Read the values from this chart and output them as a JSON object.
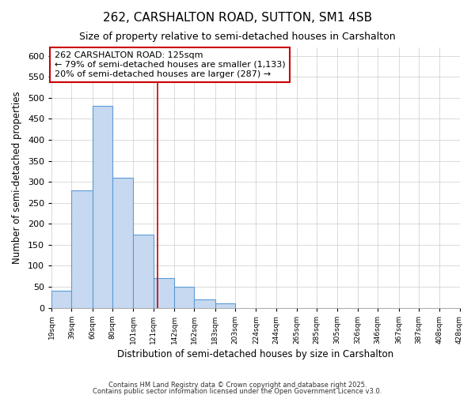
{
  "title": "262, CARSHALTON ROAD, SUTTON, SM1 4SB",
  "subtitle": "Size of property relative to semi-detached houses in Carshalton",
  "xlabel": "Distribution of semi-detached houses by size in Carshalton",
  "ylabel": "Number of semi-detached properties",
  "footer1": "Contains HM Land Registry data © Crown copyright and database right 2025.",
  "footer2": "Contains public sector information licensed under the Open Government Licence v3.0.",
  "bar_edges": [
    19,
    39,
    60,
    80,
    101,
    121,
    142,
    162,
    183,
    203,
    224,
    244,
    265,
    285,
    305,
    326,
    346,
    367,
    387,
    408,
    428
  ],
  "bar_heights": [
    40,
    280,
    480,
    310,
    175,
    70,
    50,
    20,
    10,
    0,
    0,
    0,
    0,
    0,
    0,
    0,
    0,
    0,
    0,
    0
  ],
  "bar_color": "#c6d9f0",
  "bar_edgecolor": "#5b9bd5",
  "property_size": 125,
  "annotation_title": "262 CARSHALTON ROAD: 125sqm",
  "annotation_line1": "← 79% of semi-detached houses are smaller (1,133)",
  "annotation_line2": "20% of semi-detached houses are larger (287) →",
  "vline_color": "#cc0000",
  "ylim": [
    0,
    620
  ],
  "background_color": "#ffffff",
  "grid_color": "#cccccc",
  "annotation_box_edgecolor": "#cc0000",
  "annotation_box_facecolor": "#ffffff"
}
